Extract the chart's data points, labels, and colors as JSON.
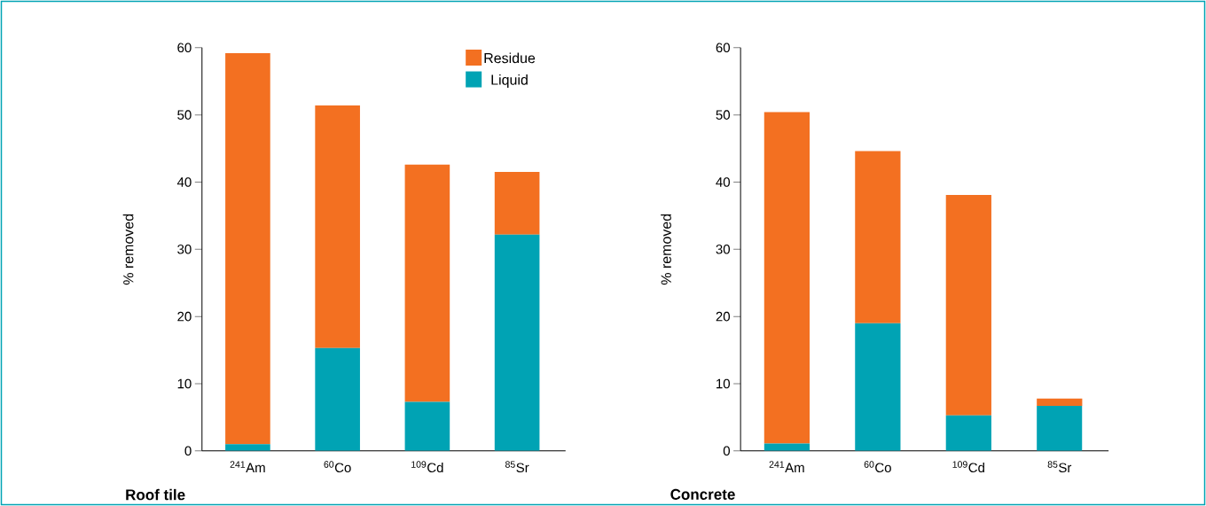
{
  "chart_data": [
    {
      "type": "bar",
      "title": "Roof tile",
      "ylabel": "% removed",
      "categories": [
        "$^{241}$Am",
        "$^{60}$Co",
        "$^{109}$Cd",
        "$^{85}$Sr"
      ],
      "stacked": true,
      "legend": "top right",
      "ylim": [
        0,
        60
      ],
      "yticks": [
        0,
        10,
        20,
        30,
        40,
        50,
        60
      ],
      "series": [
        {
          "name": "Liquid",
          "color": "#00a3b4",
          "values": [
            1.0,
            15.3,
            7.3,
            32.2
          ]
        },
        {
          "name": "Residue",
          "color": "#f37021",
          "values": [
            58.2,
            36.1,
            35.3,
            9.3
          ]
        }
      ]
    },
    {
      "type": "bar",
      "title": "Concrete",
      "ylabel": "% removed",
      "categories": [
        "$^{241}$Am",
        "$^{60}$Co",
        "$^{109}$Cd",
        "$^{85}$Sr"
      ],
      "stacked": true,
      "ylim": [
        0,
        60
      ],
      "yticks": [
        0,
        10,
        20,
        30,
        40,
        50,
        60
      ],
      "series": [
        {
          "color": "#00a3b4",
          "values": [
            1.1,
            19.0,
            5.3,
            6.7
          ]
        },
        {
          "color": "#f37021",
          "values": [
            49.3,
            25.6,
            32.8,
            1.1
          ]
        }
      ]
    }
  ]
}
